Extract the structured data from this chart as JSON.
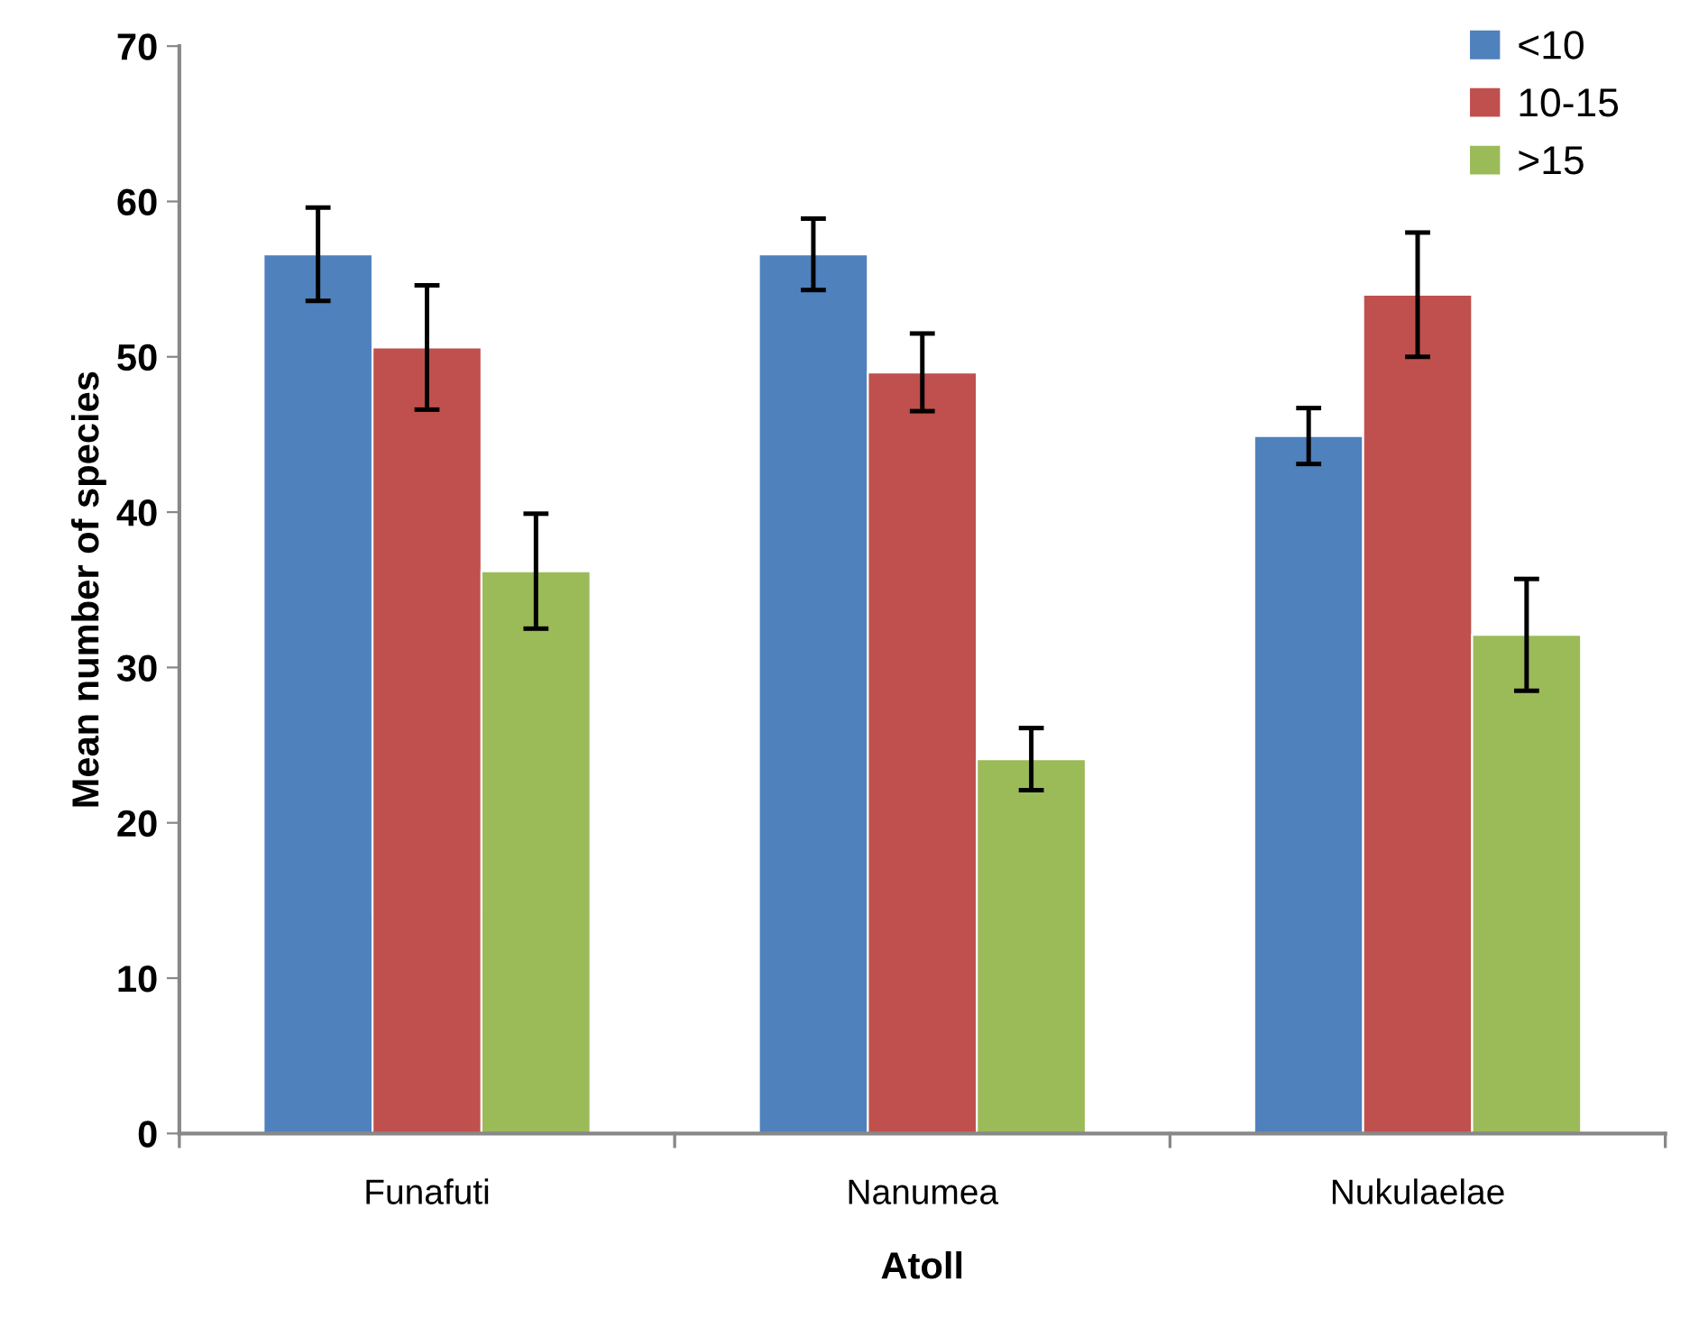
{
  "chart_data": {
    "type": "bar",
    "xlabel": "Atoll",
    "ylabel": "Mean number of species",
    "categories": [
      "Funafuti",
      "Nanumea",
      "Nukulaelae"
    ],
    "series": [
      {
        "name": "<10",
        "color": "#4f81bd",
        "values": [
          56.6,
          56.6,
          44.9
        ],
        "errors": [
          3,
          2.3,
          1.8
        ]
      },
      {
        "name": "10-15",
        "color": "#c0504d",
        "values": [
          50.6,
          49.0,
          54.0
        ],
        "errors": [
          4,
          2.5,
          4
        ]
      },
      {
        "name": ">15",
        "color": "#9bbb59",
        "values": [
          36.2,
          24.1,
          32.1
        ],
        "errors": [
          3.7,
          2,
          3.6
        ]
      }
    ],
    "ylim": [
      0,
      70
    ],
    "yticks": [
      0,
      10,
      20,
      30,
      40,
      50,
      60,
      70
    ],
    "grid": false,
    "legend": "top right"
  }
}
